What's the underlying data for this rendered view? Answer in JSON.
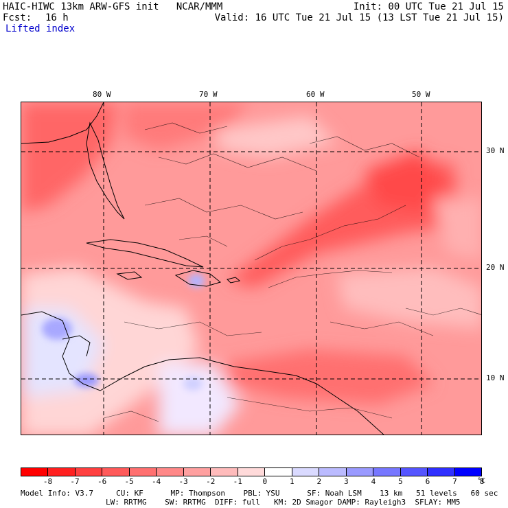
{
  "header": {
    "title_left": "HAIC-HIWC 13km ARW-GFS init   NCAR/MMM",
    "init": "Init: 00 UTC Tue 21 Jul 15",
    "fcst_label": "Fcst:",
    "fcst_value": "16 h",
    "valid": "Valid: 16 UTC Tue 21 Jul 15 (13 LST Tue 21 Jul 15)",
    "field": "Lifted index"
  },
  "map": {
    "lon_labels": [
      "80 W",
      "70 W",
      "60 W",
      "50 W"
    ],
    "lat_labels": [
      "30 N",
      "20 N",
      "10 N"
    ],
    "gridline_style": "dashed"
  },
  "colorbar": {
    "labels": [
      "-8",
      "-7",
      "-6",
      "-5",
      "-4",
      "-3",
      "-2",
      "-1",
      "0",
      "1",
      "2",
      "3",
      "4",
      "5",
      "6",
      "7",
      "8"
    ],
    "unit": "°C",
    "colors": [
      "#ff0000",
      "#ff2020",
      "#ff4040",
      "#ff5a5a",
      "#ff7070",
      "#ff8888",
      "#ffa0a0",
      "#ffbbbb",
      "#ffdada",
      "#ffffff",
      "#dadaff",
      "#bbbbff",
      "#9a9aff",
      "#7777ff",
      "#5555ff",
      "#3030ff",
      "#0000ff"
    ]
  },
  "model_info": {
    "line1": "Model Info: V3.7     CU: KF      MP: Thompson    PBL: YSU      SF: Noah LSM    13 km   51 levels   60 sec",
    "line2": "LW: RRTMG    SW: RRTMG  DIFF: full   KM: 2D Smagor DAMP: Rayleigh3  SFLAY: MM5"
  }
}
